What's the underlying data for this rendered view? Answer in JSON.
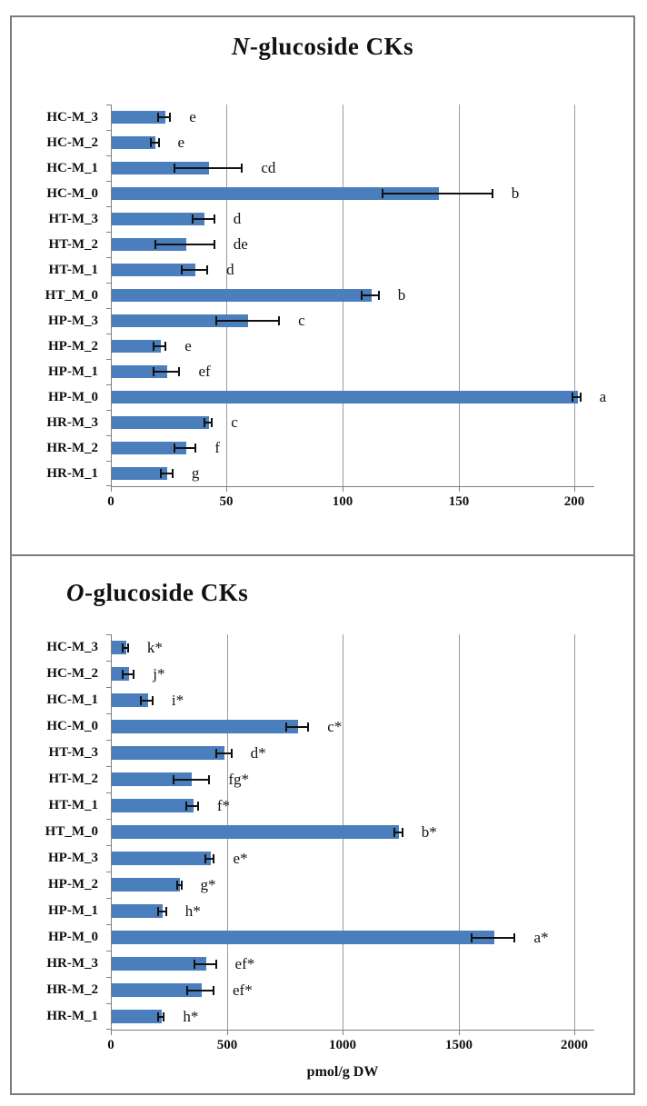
{
  "page": {
    "background": "#ffffff",
    "panel_border_color": "#7d7d7d"
  },
  "chart_data": [
    {
      "type": "bar",
      "orientation": "horizontal",
      "title": "N-glucoside CKs",
      "title_italic": "N",
      "title_rest": "-glucoside CKs",
      "title_align": "center",
      "xlabel": "",
      "xlim": [
        0,
        200
      ],
      "xticks": [
        0,
        50,
        100,
        150,
        200
      ],
      "grid": true,
      "legend": false,
      "bar_color": "#4a7ebc",
      "error_color": "#111111",
      "categories": [
        "HC-M_3",
        "HC-M_2",
        "HC-M_1",
        "HC-M_0",
        "HT-M_3",
        "HT-M_2",
        "HT-M_1",
        "HT_M_0",
        "HP-M_3",
        "HP-M_2",
        "HP-M_1",
        "HP-M_0",
        "HR-M_3",
        "HR-M_2",
        "HR-M_1"
      ],
      "values": [
        23,
        19,
        42,
        141,
        40,
        32,
        36,
        112,
        59,
        21,
        24,
        201,
        42,
        32,
        24
      ],
      "errors": [
        3,
        2,
        15,
        24,
        5,
        13,
        6,
        4,
        14,
        3,
        6,
        2,
        2,
        5,
        3
      ],
      "sig_letters": [
        "e",
        "e",
        "cd",
        "b",
        "d",
        "de",
        "d",
        "b",
        "c",
        "e",
        "ef",
        "a",
        "c",
        "f",
        "g"
      ]
    },
    {
      "type": "bar",
      "orientation": "horizontal",
      "title": "O-glucoside CKs",
      "title_italic": "O",
      "title_rest": "-glucoside CKs",
      "title_align": "left",
      "xlabel": "pmol/g DW",
      "xlim": [
        0,
        2000
      ],
      "xticks": [
        0,
        500,
        1000,
        1500,
        2000
      ],
      "grid": true,
      "legend": false,
      "bar_color": "#4a7ebc",
      "error_color": "#111111",
      "categories": [
        "HC-M_3",
        "HC-M_2",
        "HC-M_1",
        "HC-M_0",
        "HT-M_3",
        "HT-M_2",
        "HT-M_1",
        "HT_M_0",
        "HP-M_3",
        "HP-M_2",
        "HP-M_1",
        "HP-M_0",
        "HR-M_3",
        "HR-M_2",
        "HR-M_1"
      ],
      "values": [
        63,
        76,
        155,
        804,
        487,
        347,
        351,
        1240,
        427,
        296,
        221,
        1650,
        407,
        387,
        217
      ],
      "errors": [
        15,
        27,
        29,
        52,
        37,
        82,
        29,
        22,
        22,
        12,
        21,
        97,
        50,
        60,
        16
      ],
      "sig_letters": [
        "k*",
        "j*",
        "i*",
        "c*",
        "d*",
        "fg*",
        "f*",
        "b*",
        "e*",
        "g*",
        "h*",
        "a*",
        "ef*",
        "ef*",
        "h*"
      ]
    }
  ]
}
